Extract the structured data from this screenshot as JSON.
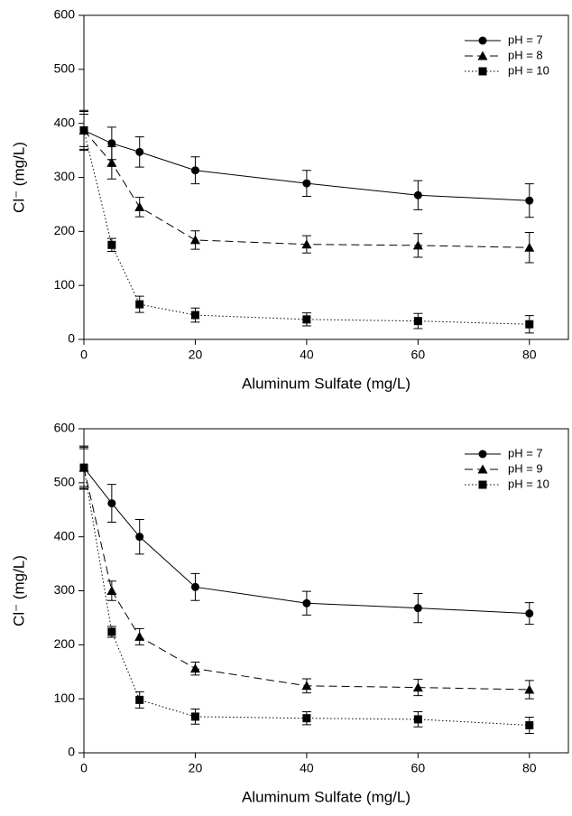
{
  "chart_data": [
    {
      "type": "line",
      "xlabel": "Aluminum Sulfate (mg/L)",
      "ylabel": "Cl⁻ (mg/L)",
      "x": [
        0,
        5,
        10,
        20,
        40,
        60,
        80
      ],
      "xlim": [
        0,
        87
      ],
      "xticks": [
        0,
        20,
        40,
        60,
        80
      ],
      "ylim": [
        0,
        600
      ],
      "yticks": [
        0,
        100,
        200,
        300,
        400,
        500,
        600
      ],
      "legend": "upper right",
      "grid": false,
      "series": [
        {
          "name": "pH = 7",
          "color": "#000000",
          "marker": "circle",
          "line_style": "solid",
          "values": [
            387,
            363,
            347,
            313,
            289,
            267,
            257
          ],
          "errors": [
            37,
            30,
            28,
            25,
            24,
            27,
            31
          ]
        },
        {
          "name": "pH = 8",
          "color": "#000000",
          "marker": "triangle",
          "line_style": "dashed",
          "values": [
            387,
            327,
            245,
            184,
            176,
            174,
            170
          ],
          "errors": [
            35,
            30,
            18,
            17,
            16,
            22,
            28
          ]
        },
        {
          "name": "pH = 10",
          "color": "#000000",
          "marker": "square",
          "line_style": "dotted",
          "values": [
            387,
            175,
            65,
            45,
            37,
            34,
            28
          ],
          "errors": [
            30,
            12,
            15,
            13,
            12,
            14,
            16
          ]
        }
      ]
    },
    {
      "type": "line",
      "xlabel": "Aluminum Sulfate (mg/L)",
      "ylabel": "Cl⁻ (mg/L)",
      "x": [
        0,
        5,
        10,
        20,
        40,
        60,
        80
      ],
      "xlim": [
        0,
        87
      ],
      "xticks": [
        0,
        20,
        40,
        60,
        80
      ],
      "ylim": [
        0,
        600
      ],
      "yticks": [
        0,
        100,
        200,
        300,
        400,
        500,
        600
      ],
      "legend": "upper right",
      "grid": false,
      "series": [
        {
          "name": "pH = 7",
          "color": "#000000",
          "marker": "circle",
          "line_style": "solid",
          "values": [
            528,
            462,
            400,
            307,
            277,
            268,
            258
          ],
          "errors": [
            40,
            35,
            32,
            25,
            22,
            27,
            20
          ]
        },
        {
          "name": "pH = 9",
          "color": "#000000",
          "marker": "triangle",
          "line_style": "dashed",
          "values": [
            528,
            300,
            215,
            156,
            124,
            121,
            117
          ],
          "errors": [
            38,
            18,
            15,
            12,
            13,
            15,
            17
          ]
        },
        {
          "name": "pH = 10",
          "color": "#000000",
          "marker": "square",
          "line_style": "dotted",
          "values": [
            528,
            224,
            98,
            67,
            64,
            62,
            51
          ],
          "errors": [
            35,
            10,
            15,
            14,
            12,
            14,
            15
          ]
        }
      ]
    }
  ]
}
